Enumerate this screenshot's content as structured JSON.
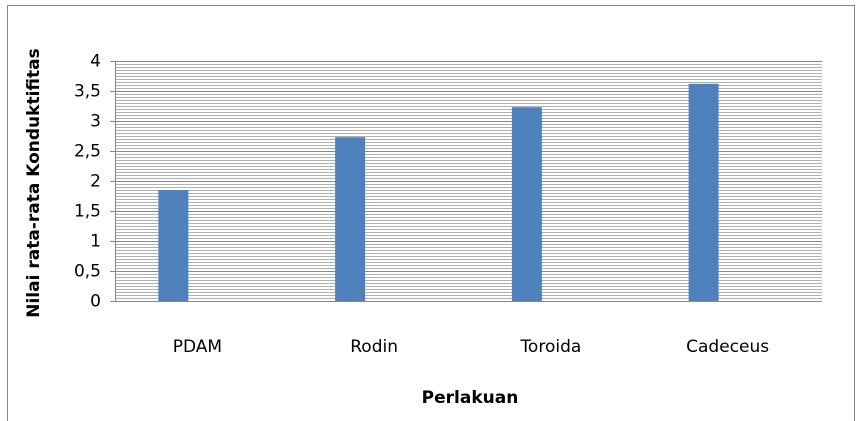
{
  "chart_data": {
    "type": "bar",
    "x_label": "Perlakuan",
    "y_label": "Nilai rata-rata Konduktifitas",
    "categories": [
      "PDAM",
      "Rodin",
      "Toroida",
      "Cadeceus"
    ],
    "values": [
      1.85,
      2.73,
      3.23,
      3.62
    ],
    "color": "#4f81bd",
    "ylim": [
      0,
      4
    ],
    "yticks": [
      0,
      {
        "value": 0.5,
        "label": "0,5"
      },
      1,
      {
        "value": 1.5,
        "label": "1,5"
      },
      2,
      {
        "value": 2.5,
        "label": "2,5"
      },
      3,
      {
        "value": 3.5,
        "label": "3,5"
      },
      4
    ],
    "grid": true,
    "minor_grid_divisions": 10
  }
}
